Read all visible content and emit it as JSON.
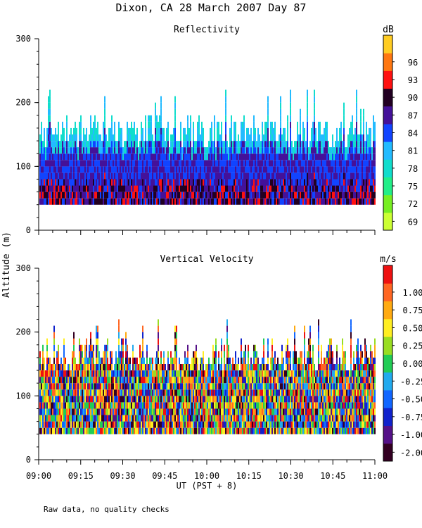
{
  "figure": {
    "title": "Dixon, CA 28 March 2007  Day  87",
    "xlabel": "UT  (PST + 8)",
    "ylabel": "Altitude (m)",
    "footnote": "Raw data, no quality checks"
  },
  "chart_data": [
    {
      "type": "heatmap",
      "title": "Reflectivity",
      "xlabel": "UT  (PST + 8)",
      "ylabel": "Altitude (m)",
      "x_ticks": [
        "09:00",
        "09:15",
        "09:30",
        "09:45",
        "10:00",
        "10:15",
        "10:30",
        "10:45",
        "11:00"
      ],
      "y_ticks": [
        "0",
        "100",
        "200",
        "300"
      ],
      "ylim": [
        0,
        300
      ],
      "colorbar": {
        "unit": "dB",
        "range": [
          68,
          98
        ],
        "ticks": [
          "69",
          "72",
          "75",
          "78",
          "81",
          "84",
          "87",
          "90",
          "93",
          "96"
        ],
        "colors": [
          "#ccff33",
          "#77ee22",
          "#22ee88",
          "#11ddcc",
          "#22bbff",
          "#1144ff",
          "#441199",
          "#220022",
          "#ff1111",
          "#ff7711",
          "#ffcc22"
        ]
      },
      "data_summary": {
        "lowest_echo_altitude_m": 40,
        "typical_top_altitude_m": [
          130,
          180
        ],
        "max_top_altitude_m": 220,
        "low_layer_values_dB": [
          84,
          90
        ],
        "upper_layer_values_dB": [
          75,
          81
        ]
      }
    },
    {
      "type": "heatmap",
      "title": "Vertical Velocity",
      "xlabel": "UT  (PST + 8)",
      "ylabel": "Altitude (m)",
      "x_ticks": [
        "09:00",
        "09:15",
        "09:30",
        "09:45",
        "10:00",
        "10:15",
        "10:30",
        "10:45",
        "11:00"
      ],
      "y_ticks": [
        "0",
        "100",
        "200",
        "300"
      ],
      "ylim": [
        0,
        300
      ],
      "colorbar": {
        "unit": "m/s",
        "range": [
          -2.0,
          1.25
        ],
        "ticks": [
          "-2.00",
          "-1.00",
          "-0.75",
          "-0.50",
          "-0.25",
          "0.00",
          "0.25",
          "0.50",
          "0.75",
          "1.00"
        ],
        "colors": [
          "#330022",
          "#551188",
          "#1122cc",
          "#1166ff",
          "#22aaee",
          "#22cc55",
          "#99dd22",
          "#ffee22",
          "#ffaa11",
          "#ff6622",
          "#ee1111"
        ]
      },
      "data_summary": {
        "lowest_echo_altitude_m": 40,
        "typical_top_altitude_m": [
          140,
          190
        ],
        "max_top_altitude_m": 220,
        "value_range_m_s": [
          -2.0,
          1.25
        ]
      }
    }
  ]
}
